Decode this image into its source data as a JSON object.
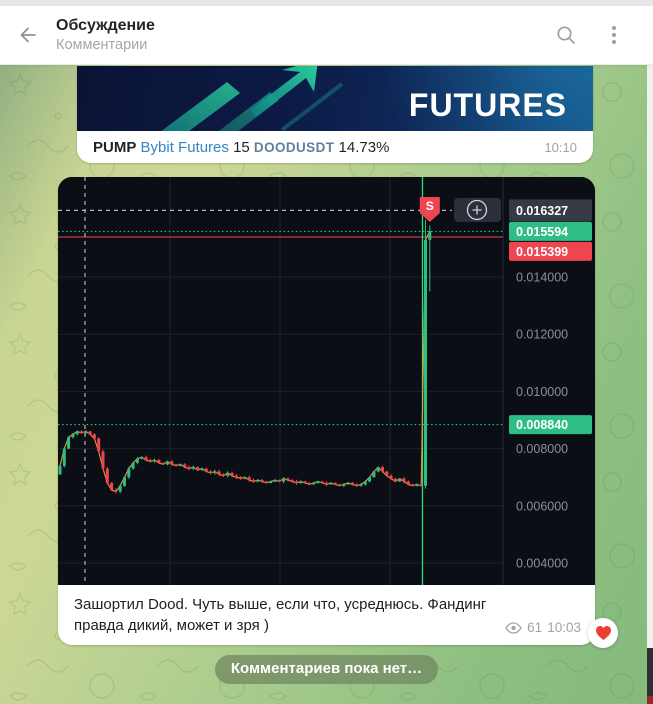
{
  "header": {
    "title": "Обсуждение",
    "subtitle": "Комментарии"
  },
  "post1": {
    "banner_title": "FUTURES",
    "signal": {
      "label": "PUMP",
      "exchange": "Bybit Futures",
      "timeframe": "15",
      "pair": "DOODUSDT",
      "change": "14.73%"
    },
    "time": "10:10"
  },
  "post2": {
    "caption_lines": [
      "Зашортил Dood. Чуть выше, если что, усреднюсь. Фандинг",
      "правда дикий, может и зря )"
    ],
    "views": "61",
    "time": "10:03",
    "reaction": "❤"
  },
  "service_message": "Комментариев пока нет…",
  "chart_data": {
    "type": "candlestick",
    "context": "DOODUSDT 15m Bybit Futures",
    "y_axis_ticks": [
      "0.014000",
      "0.012000",
      "0.010000",
      "0.008000",
      "0.006000",
      "0.004000"
    ],
    "tick_values": [
      0.014,
      0.012,
      0.01,
      0.008,
      0.006,
      0.004
    ],
    "crosshair_price": {
      "label": "0.016327",
      "value": 0.016327
    },
    "levels": [
      {
        "label": "0.015594",
        "value": 0.015594,
        "style": "dotted",
        "color": "#2ebd85"
      },
      {
        "label": "0.015399",
        "value": 0.015399,
        "style": "solid",
        "color": "#ef4550"
      },
      {
        "label": "0.008840",
        "value": 0.00884,
        "style": "dotted",
        "color": "#2ebd85"
      }
    ],
    "marker": {
      "type": "sell",
      "label": "S",
      "candle_index": 86
    },
    "candles_close_1e4": [
      74,
      80,
      84,
      85,
      86,
      85.5,
      86,
      85,
      83.5,
      79,
      73,
      68,
      65.5,
      65,
      67,
      70,
      73,
      75,
      76.5,
      77,
      76,
      75.5,
      76,
      75,
      74.5,
      75.5,
      74.5,
      74,
      74.5,
      73.5,
      73,
      73.5,
      72.5,
      73,
      72,
      71.5,
      72,
      71,
      70.5,
      71.5,
      70.5,
      70,
      69.5,
      70,
      69,
      68.5,
      69,
      68.5,
      68,
      68.5,
      69,
      68.5,
      69.5,
      69,
      68.5,
      68,
      68.5,
      68,
      67.5,
      68,
      68.5,
      68,
      67.5,
      68,
      67.5,
      67,
      67.5,
      68,
      67.5,
      67,
      67.5,
      68.5,
      70,
      72,
      73.5,
      72,
      70.5,
      69.5,
      68.5,
      69.5,
      68.5,
      67.5,
      67,
      67.5,
      67,
      153,
      156
    ],
    "candle_overrides": {
      "85": [
        67,
        160,
        66,
        153
      ],
      "86": [
        153,
        158,
        135,
        156
      ]
    },
    "colors": {
      "up": "#2ebd85",
      "down": "#ef4550",
      "bg": "#0c0e15",
      "grid": "#1c212b",
      "axis_text": "#8b8f99",
      "crosshair": "#b2b5be",
      "crosshair_label_bg": "#363a45",
      "ma": "#f0a12f",
      "current_line": "#2bdb84"
    }
  }
}
